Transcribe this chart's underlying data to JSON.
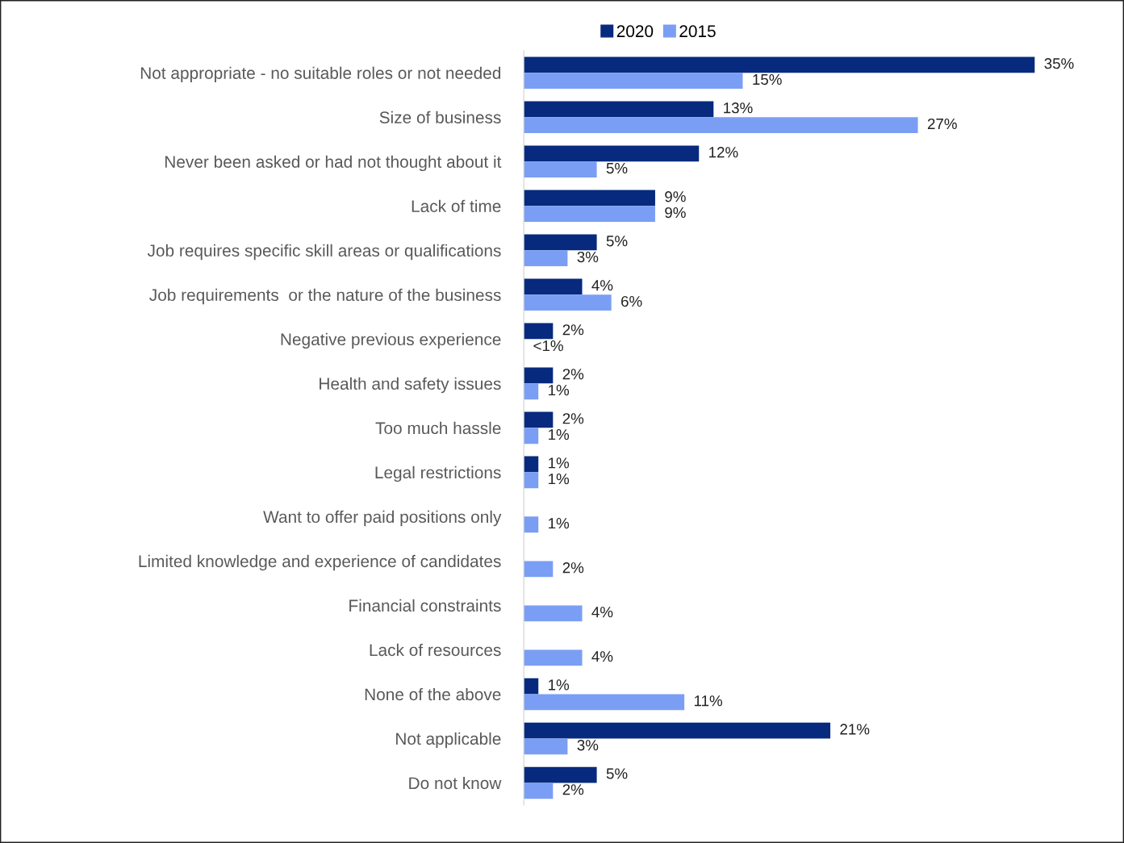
{
  "chart_data": {
    "type": "bar",
    "orientation": "horizontal",
    "legend": "top",
    "grid": false,
    "categories": [
      "Not appropriate - no suitable roles or not needed",
      "Size of business",
      "Never been asked or had not thought about it",
      "Lack of time",
      "Job requires specific skill areas or qualifications",
      "Job requirements  or the nature of the business",
      "Negative previous experience",
      "Health and safety issues",
      "Too much hassle",
      "Legal restrictions",
      "Want to offer paid positions only",
      "Limited knowledge and experience of candidates",
      "Financial constraints",
      "Lack of resources",
      "None of the above",
      "Not applicable",
      "Do not know"
    ],
    "series": [
      {
        "name": "2020",
        "color": "#072a7e",
        "values": [
          35,
          13,
          12,
          9,
          5,
          4,
          2,
          2,
          2,
          1,
          null,
          null,
          null,
          null,
          1,
          21,
          5
        ],
        "value_labels": [
          "35%",
          "13%",
          "12%",
          "9%",
          "5%",
          "4%",
          "2%",
          "2%",
          "2%",
          "1%",
          null,
          null,
          null,
          null,
          "1%",
          "21%",
          "5%"
        ]
      },
      {
        "name": "2015",
        "color": "#7b9ef5",
        "values": [
          15,
          27,
          5,
          9,
          3,
          6,
          0,
          1,
          1,
          1,
          1,
          2,
          4,
          4,
          11,
          3,
          2
        ],
        "value_labels": [
          "15%",
          "27%",
          "5%",
          "9%",
          "3%",
          "6%",
          "<1%",
          "1%",
          "1%",
          "1%",
          "1%",
          "2%",
          "4%",
          "4%",
          "11%",
          "3%",
          "2%"
        ]
      }
    ]
  }
}
